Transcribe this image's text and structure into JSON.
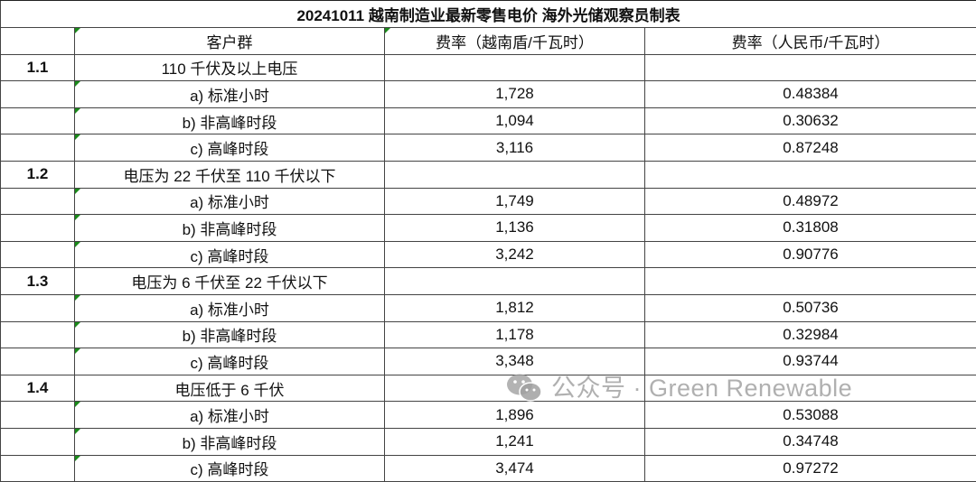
{
  "title": "20241011 越南制造业最新零售电价 海外光储观察员制表",
  "headers": [
    "",
    "客户群",
    "费率（越南盾/千瓦时）",
    "费率（人民币/千瓦时）"
  ],
  "sections": [
    {
      "id": "1.1",
      "label": "110 千伏及以上电压",
      "rows": [
        {
          "label": "a) 标准小时",
          "vnd": "1,728",
          "cny": "0.48384"
        },
        {
          "label": "b) 非高峰时段",
          "vnd": "1,094",
          "cny": "0.30632"
        },
        {
          "label": "c) 高峰时段",
          "vnd": "3,116",
          "cny": "0.87248"
        }
      ]
    },
    {
      "id": "1.2",
      "label": "电压为 22 千伏至 110 千伏以下",
      "rows": [
        {
          "label": "a) 标准小时",
          "vnd": "1,749",
          "cny": "0.48972"
        },
        {
          "label": "b) 非高峰时段",
          "vnd": "1,136",
          "cny": "0.31808"
        },
        {
          "label": "c) 高峰时段",
          "vnd": "3,242",
          "cny": "0.90776"
        }
      ]
    },
    {
      "id": "1.3",
      "label": "电压为 6 千伏至 22 千伏以下",
      "rows": [
        {
          "label": "a) 标准小时",
          "vnd": "1,812",
          "cny": "0.50736"
        },
        {
          "label": "b) 非高峰时段",
          "vnd": "1,178",
          "cny": "0.32984"
        },
        {
          "label": "c) 高峰时段",
          "vnd": "3,348",
          "cny": "0.93744"
        }
      ]
    },
    {
      "id": "1.4",
      "label": "电压低于 6 千伏",
      "rows": [
        {
          "label": "a) 标准小时",
          "vnd": "1,896",
          "cny": "0.53088"
        },
        {
          "label": "b) 非高峰时段",
          "vnd": "1,241",
          "cny": "0.34748"
        },
        {
          "label": "c) 高峰时段",
          "vnd": "3,474",
          "cny": "0.97272"
        }
      ]
    }
  ],
  "watermark": {
    "icon": "wechat-icon",
    "text": "公众号 · Green Renewable"
  },
  "colors": {
    "cell_marker": "#1a8a1a"
  }
}
